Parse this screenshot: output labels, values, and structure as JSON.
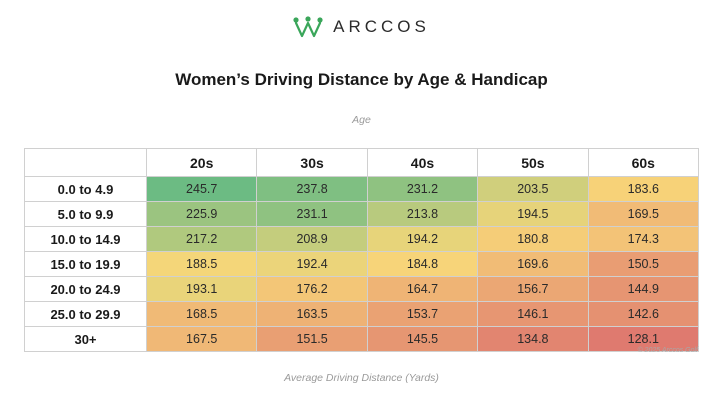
{
  "brand": {
    "name": "ARCCOS",
    "logo_icon": "crown-icon",
    "logo_color": "#3aa65a"
  },
  "chart_data": {
    "type": "heatmap",
    "title": "Women’s Driving Distance by Age & Handicap",
    "column_axis_label": "Age",
    "xlabel": "Average Driving Distance (Yards)",
    "columns": [
      "20s",
      "30s",
      "40s",
      "50s",
      "60s"
    ],
    "rows": [
      "0.0 to 4.9",
      "5.0 to 9.9",
      "10.0 to 14.9",
      "15.0 to 19.9",
      "20.0 to 24.9",
      "25.0 to 29.9",
      "30+"
    ],
    "values": [
      [
        245.7,
        237.8,
        231.2,
        203.5,
        183.6
      ],
      [
        225.9,
        231.1,
        213.8,
        194.5,
        169.5
      ],
      [
        217.2,
        208.9,
        194.2,
        180.8,
        174.3
      ],
      [
        188.5,
        192.4,
        184.8,
        169.6,
        150.5
      ],
      [
        193.1,
        176.2,
        164.7,
        156.7,
        144.9
      ],
      [
        168.5,
        163.5,
        153.7,
        146.1,
        142.6
      ],
      [
        167.5,
        151.5,
        145.5,
        134.8,
        128.1
      ]
    ],
    "color_scale": [
      "#df7a6f",
      "#f8d779",
      "#6cbb83"
    ],
    "copyright": "© 2025 Arccos Golf"
  }
}
